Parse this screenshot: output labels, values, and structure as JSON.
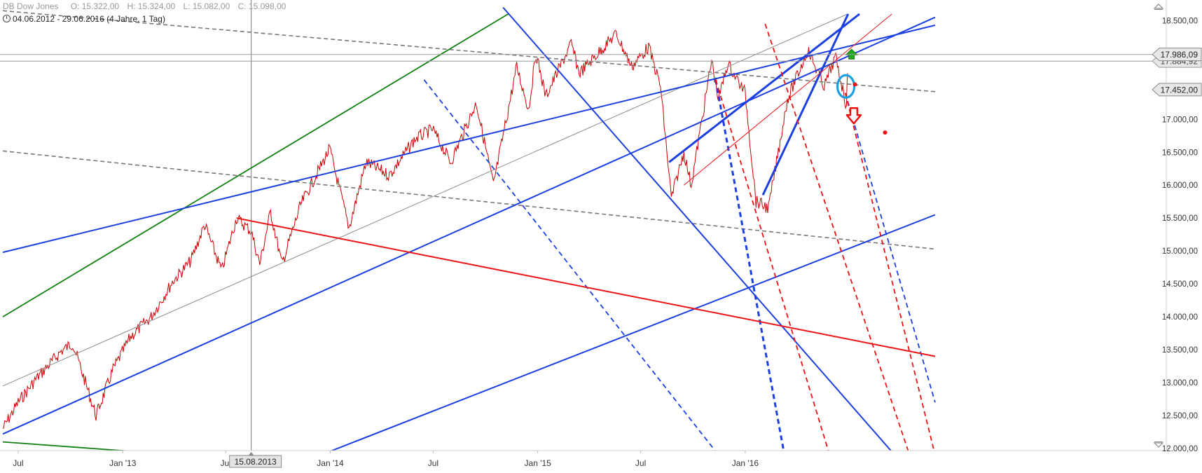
{
  "header": {
    "instrument": "DB Dow Jones",
    "ohlc": {
      "open": "O: 15.322,00",
      "high": "H: 15.324,00",
      "low": "L: 15.082,00",
      "close": "C: 15.098,00"
    },
    "range": "04.06.2012 - 29.06.2016 (4 Jahre, 1 Tag)"
  },
  "crosshair_label": "15.08.2013",
  "price_labels": {
    "current": "17.986,09",
    "level": "17.452,00",
    "hidden": "17.884,92"
  },
  "colors": {
    "price": "#cc0000",
    "blue_line": "#1b3fe0",
    "red_line": "#ee1111",
    "green_line": "#128012",
    "gray_line": "#777777",
    "circle": "#1aa0e0",
    "arrow_down": "#ee1111",
    "arrow_up": "#22aa22"
  },
  "chart_data": {
    "type": "line",
    "x_range": [
      "2012-06-04",
      "2016-06-29"
    ],
    "ylim": [
      12000,
      18600
    ],
    "y_ticks": [
      "12.000,00",
      "12.500,00",
      "13.000,00",
      "13.500,00",
      "14.000,00",
      "14.500,00",
      "15.000,00",
      "15.500,00",
      "16.000,00",
      "16.500,00",
      "17.000,00",
      "17.500,00",
      "18.000,00",
      "18.500,00"
    ],
    "x_ticks": [
      {
        "label": "Jul",
        "date": "2012-07-01"
      },
      {
        "label": "Jan '13",
        "date": "2013-01-01"
      },
      {
        "label": "Jul",
        "date": "2013-07-01"
      },
      {
        "label": "Jan '14",
        "date": "2014-01-01"
      },
      {
        "label": "Jul",
        "date": "2014-07-01"
      },
      {
        "label": "Jan '15",
        "date": "2015-01-01"
      },
      {
        "label": "Jul",
        "date": "2015-07-01"
      },
      {
        "label": "Jan '16",
        "date": "2016-01-01"
      }
    ],
    "price_path": [
      [
        "2012-06-04",
        12300
      ],
      [
        "2012-07-01",
        12700
      ],
      [
        "2012-08-01",
        13050
      ],
      [
        "2012-09-15",
        13480
      ],
      [
        "2012-10-05",
        13600
      ],
      [
        "2012-11-15",
        12500
      ],
      [
        "2012-12-15",
        13200
      ],
      [
        "2013-01-15",
        13700
      ],
      [
        "2013-02-20",
        14000
      ],
      [
        "2013-03-31",
        14550
      ],
      [
        "2013-05-01",
        14850
      ],
      [
        "2013-05-25",
        15400
      ],
      [
        "2013-06-24",
        14700
      ],
      [
        "2013-07-20",
        15500
      ],
      [
        "2013-08-15",
        15300
      ],
      [
        "2013-08-30",
        14800
      ],
      [
        "2013-09-18",
        15600
      ],
      [
        "2013-10-08",
        14800
      ],
      [
        "2013-11-10",
        15700
      ],
      [
        "2013-12-31",
        16550
      ],
      [
        "2014-02-03",
        15350
      ],
      [
        "2014-03-05",
        16350
      ],
      [
        "2014-04-15",
        16150
      ],
      [
        "2014-05-30",
        16700
      ],
      [
        "2014-06-30",
        16850
      ],
      [
        "2014-08-01",
        16350
      ],
      [
        "2014-09-15",
        17250
      ],
      [
        "2014-10-15",
        16000
      ],
      [
        "2014-11-25",
        17800
      ],
      [
        "2014-12-16",
        17150
      ],
      [
        "2014-12-29",
        18000
      ],
      [
        "2015-01-15",
        17350
      ],
      [
        "2015-03-01",
        18150
      ],
      [
        "2015-03-15",
        17700
      ],
      [
        "2015-05-19",
        18300
      ],
      [
        "2015-06-15",
        17800
      ],
      [
        "2015-07-15",
        18100
      ],
      [
        "2015-08-05",
        17500
      ],
      [
        "2015-08-24",
        15800
      ],
      [
        "2015-09-15",
        16500
      ],
      [
        "2015-09-28",
        16000
      ],
      [
        "2015-11-03",
        17900
      ],
      [
        "2015-11-15",
        17300
      ],
      [
        "2015-12-01",
        17850
      ],
      [
        "2016-01-01",
        17400
      ],
      [
        "2016-01-20",
        15750
      ],
      [
        "2016-02-11",
        15650
      ],
      [
        "2016-03-15",
        17300
      ],
      [
        "2016-04-20",
        18050
      ],
      [
        "2016-05-19",
        17500
      ],
      [
        "2016-06-08",
        17950
      ],
      [
        "2016-06-27",
        17200
      ],
      [
        "2016-06-29",
        17700
      ]
    ],
    "trend_lines": [
      {
        "style": "gray-dashed",
        "p1": [
          "2012-06-04",
          18650
        ],
        "p2": [
          "2016-11-30",
          17420
        ]
      },
      {
        "style": "gray-dashed",
        "p1": [
          "2012-06-04",
          16520
        ],
        "p2": [
          "2016-11-30",
          15030
        ]
      },
      {
        "style": "gray-thin",
        "p1": [
          "2012-06-04",
          12950
        ],
        "p2": [
          "2016-06-29",
          18600
        ]
      },
      {
        "style": "green",
        "p1": [
          "2012-06-04",
          14000
        ],
        "p2": [
          "2014-11-10",
          18600
        ]
      },
      {
        "style": "green",
        "p1": [
          "2012-06-04",
          12100
        ],
        "p2": [
          "2013-12-10",
          11750
        ]
      },
      {
        "style": "blue",
        "p1": [
          "2012-06-04",
          14980
        ],
        "p2": [
          "2016-11-30",
          18430
        ]
      },
      {
        "style": "blue",
        "p1": [
          "2012-06-04",
          12220
        ],
        "p2": [
          "2016-11-30",
          18550
        ]
      },
      {
        "style": "blue",
        "p1": [
          "2013-12-15",
          11900
        ],
        "p2": [
          "2016-11-30",
          15550
        ]
      },
      {
        "style": "blue",
        "p1": [
          "2014-11-01",
          18700
        ],
        "p2": [
          "2016-09-20",
          11900
        ]
      },
      {
        "style": "blue-dashed",
        "p1": [
          "2014-06-15",
          17600
        ],
        "p2": [
          "2015-11-15",
          11900
        ]
      },
      {
        "style": "blue-dashed",
        "p1": [
          "2015-11-10",
          17600
        ],
        "p2": [
          "2016-03-10",
          11900
        ],
        "width": 3
      },
      {
        "style": "blue-dashed",
        "p1": [
          "2016-06-25",
          17400
        ],
        "p2": [
          "2016-11-30",
          12700
        ]
      },
      {
        "style": "blue-thick",
        "p1": [
          "2015-08-20",
          16350
        ],
        "p2": [
          "2016-07-20",
          18600
        ]
      },
      {
        "style": "blue-thick",
        "p1": [
          "2016-02-01",
          15850
        ],
        "p2": [
          "2016-06-30",
          18600
        ]
      },
      {
        "style": "red",
        "p1": [
          "2013-07-20",
          15500
        ],
        "p2": [
          "2016-11-30",
          13400
        ]
      },
      {
        "style": "red-thin",
        "p1": [
          "2015-09-15",
          16000
        ],
        "p2": [
          "2016-09-15",
          18600
        ]
      },
      {
        "style": "red-dashed",
        "p1": [
          "2015-11-10",
          17600
        ],
        "p2": [
          "2016-06-01",
          11800
        ]
      },
      {
        "style": "red-dashed",
        "p1": [
          "2016-02-05",
          18450
        ],
        "p2": [
          "2016-10-20",
          11800
        ]
      },
      {
        "style": "red-dashed",
        "p1": [
          "2016-06-25",
          17400
        ],
        "p2": [
          "2016-11-30",
          11900
        ]
      }
    ],
    "markers": [
      {
        "type": "circle",
        "date": "2016-06-26",
        "value": 17500
      },
      {
        "type": "arrow-down",
        "date": "2016-07-10",
        "value": 17000
      },
      {
        "type": "arrow-up",
        "date": "2016-07-06",
        "value": 17980
      },
      {
        "type": "dot",
        "date": "2016-07-12",
        "value": 17530
      },
      {
        "type": "dot",
        "date": "2016-09-03",
        "value": 16800
      }
    ],
    "crosshair_date": "2013-08-15",
    "grid": false
  }
}
